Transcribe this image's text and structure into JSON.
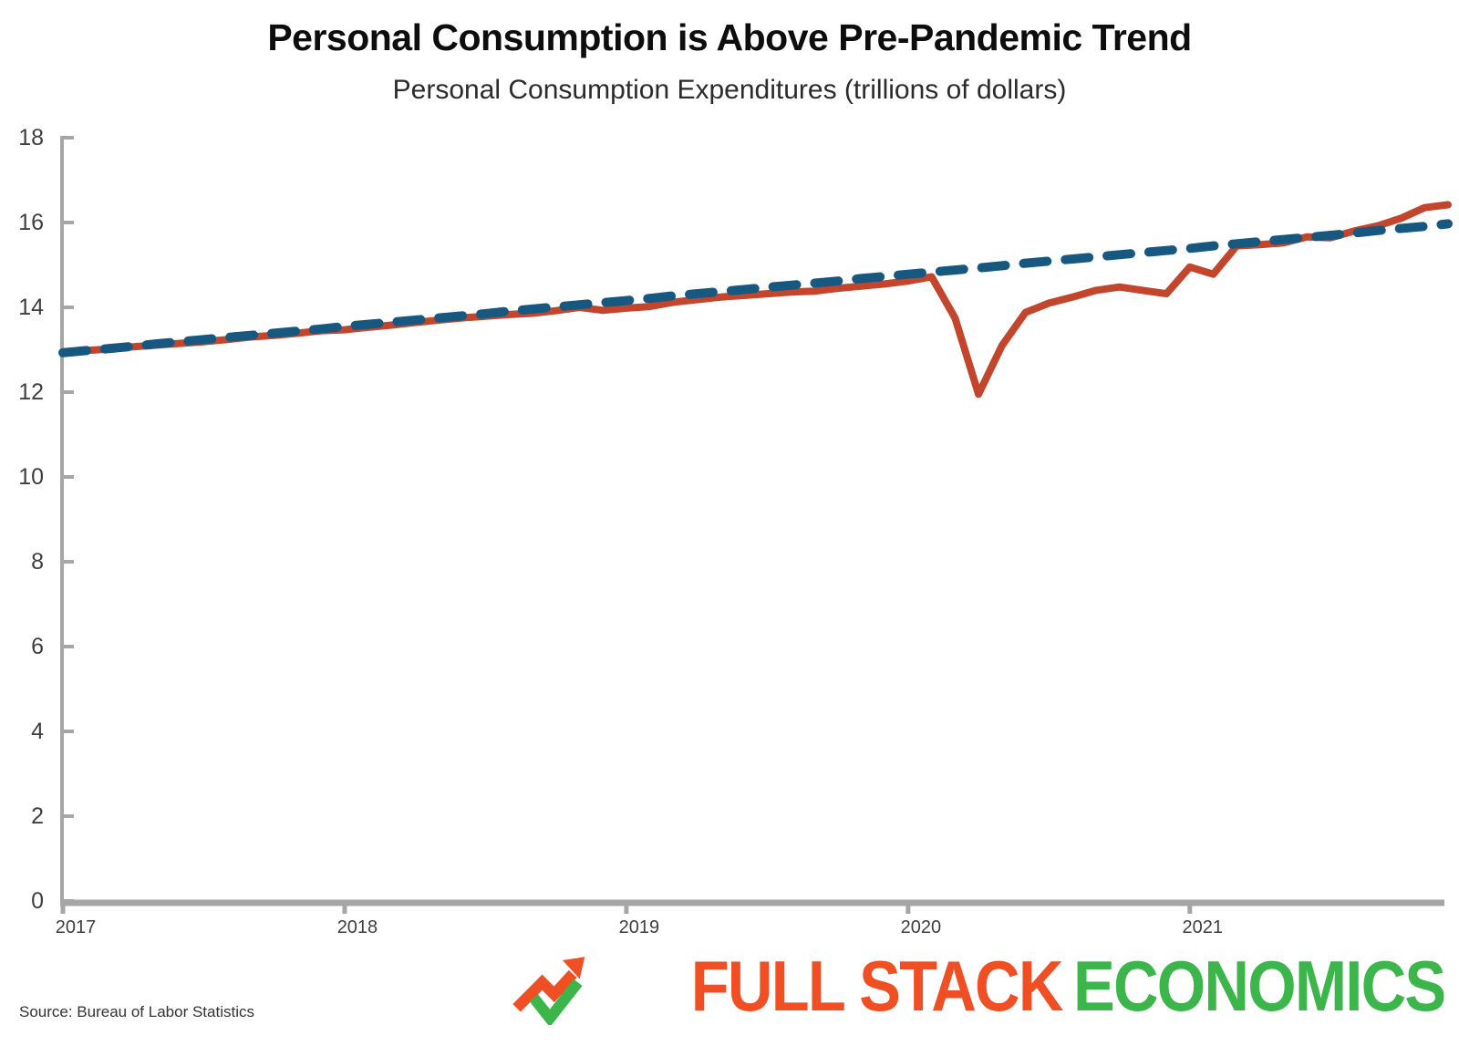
{
  "title": "Personal Consumption is Above Pre-Pandemic Trend",
  "subtitle": "Personal Consumption Expenditures (trillions of dollars)",
  "source": "Source: Bureau of Labor Statistics",
  "logo": {
    "part1": "FULL STACK",
    "part2": "ECONOMICS",
    "icon": "trend-arrow-check-icon",
    "orange": "#F04E23",
    "green": "#3CB54B"
  },
  "colors": {
    "actual_line": "#C2452C",
    "trend_line": "#16587F",
    "axis": "#A6A6A6",
    "tick_text": "#3F3F3F"
  },
  "chart_data": {
    "type": "line",
    "title": "Personal Consumption is Above Pre-Pandemic Trend",
    "subtitle": "Personal Consumption Expenditures (trillions of dollars)",
    "frequency": "monthly",
    "x_start": "2017-01",
    "x_end": "2021-12",
    "x_tick_labels": [
      "2017",
      "2018",
      "2019",
      "2020",
      "2021"
    ],
    "y_ticks": [
      0,
      2,
      4,
      6,
      8,
      10,
      12,
      14,
      16,
      18
    ],
    "ylim": [
      0,
      18
    ],
    "grid": false,
    "legend": "none",
    "series": [
      {
        "name": "Personal Consumption Expenditures (actual)",
        "style": "solid",
        "color": "#C2452C",
        "values": [
          12.95,
          12.98,
          13.02,
          13.07,
          13.11,
          13.15,
          13.19,
          13.24,
          13.3,
          13.34,
          13.39,
          13.45,
          13.47,
          13.53,
          13.58,
          13.64,
          13.7,
          13.75,
          13.79,
          13.83,
          13.86,
          13.92,
          14.0,
          13.93,
          13.98,
          14.02,
          14.12,
          14.18,
          14.24,
          14.28,
          14.32,
          14.36,
          14.38,
          14.45,
          14.5,
          14.55,
          14.62,
          14.72,
          13.75,
          11.95,
          13.1,
          13.88,
          14.1,
          14.24,
          14.4,
          14.48,
          14.4,
          14.32,
          14.95,
          14.78,
          15.45,
          15.48,
          15.52,
          15.66,
          15.64,
          15.8,
          15.92,
          16.1,
          16.35,
          16.42
        ]
      },
      {
        "name": "Pre-pandemic trend",
        "style": "dashed",
        "color": "#16587F",
        "values": [
          12.93,
          12.98,
          13.03,
          13.08,
          13.14,
          13.19,
          13.24,
          13.29,
          13.34,
          13.39,
          13.44,
          13.49,
          13.55,
          13.6,
          13.65,
          13.7,
          13.75,
          13.8,
          13.85,
          13.91,
          13.96,
          14.01,
          14.06,
          14.11,
          14.16,
          14.21,
          14.27,
          14.32,
          14.37,
          14.42,
          14.47,
          14.52,
          14.57,
          14.62,
          14.68,
          14.73,
          14.78,
          14.83,
          14.88,
          14.93,
          14.98,
          15.04,
          15.09,
          15.14,
          15.19,
          15.24,
          15.29,
          15.34,
          15.39,
          15.45,
          15.5,
          15.55,
          15.6,
          15.65,
          15.7,
          15.75,
          15.81,
          15.86,
          15.91,
          15.97
        ]
      }
    ]
  },
  "layout_note": ""
}
